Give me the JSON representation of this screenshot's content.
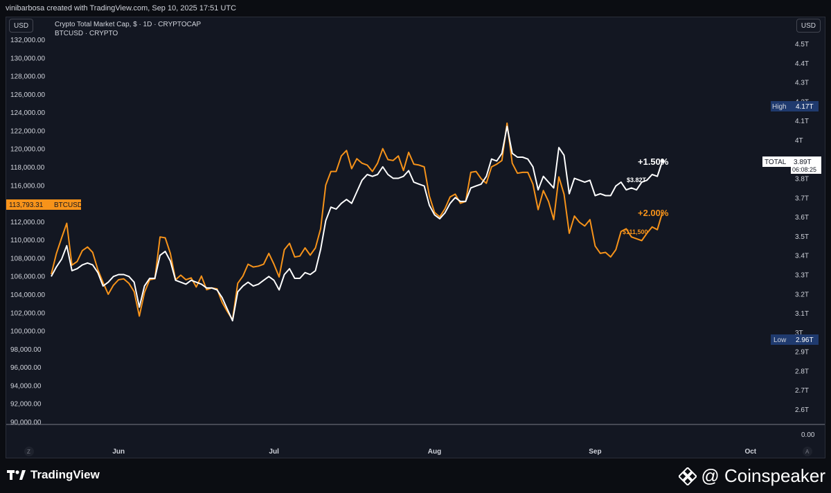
{
  "header": {
    "credit": "vinibarbosa created with TradingView.com, Sep 10, 2025 17:51 UTC"
  },
  "toolbar": {
    "left_currency": "USD",
    "right_currency": "USD"
  },
  "legend": {
    "line1": "Crypto Total Market Cap, $ · 1D · CRYPTOCAP",
    "line2": "BTCUSD · CRYPTO"
  },
  "labels": {
    "btc_price": "113,793.31",
    "btc_tag": "BTCUSD",
    "total_tag": "TOTAL",
    "total_value": "3.89T",
    "total_countdown": "06:08:25",
    "high_label": "High",
    "high_value": "4.17T",
    "low_label": "Low",
    "low_value": "2.96T",
    "total_pct": "+1.50%",
    "total_annot": "$3.82T",
    "btc_pct": "+2.00%",
    "btc_annot": "$111,500",
    "zero_label": "0.00",
    "z_button": "Z",
    "a_button": "A"
  },
  "footer": {
    "left_brand": "TradingView",
    "right_brand": "@ Coinspeaker"
  },
  "colors": {
    "background": "#131722",
    "btc_line": "#f7931a",
    "total_line": "#ffffff",
    "high_low_tag": "#1f3a6e"
  },
  "chart_data": {
    "type": "line",
    "x_start": "2025-05-19",
    "x_ticks": [
      "Jun",
      "Jul",
      "Aug",
      "Sep",
      "Oct"
    ],
    "left_axis": {
      "label": "BTCUSD",
      "ylim": [
        90000,
        132000
      ],
      "ticks": [
        "132,000.00",
        "130,000.00",
        "128,000.00",
        "126,000.00",
        "124,000.00",
        "122,000.00",
        "120,000.00",
        "118,000.00",
        "116,000.00",
        "114,000.00",
        "112,000.00",
        "110,000.00",
        "108,000.00",
        "106,000.00",
        "104,000.00",
        "102,000.00",
        "100,000.00",
        "98,000.00",
        "96,000.00",
        "94,000.00",
        "92,000.00",
        "90,000.00"
      ]
    },
    "right_axis": {
      "label": "TOTAL",
      "ticks": [
        "4.5T",
        "4.4T",
        "4.3T",
        "4.2T",
        "4.1T",
        "4T",
        "3.9T",
        "3.8T",
        "3.7T",
        "3.6T",
        "3.5T",
        "3.4T",
        "3.3T",
        "3.2T",
        "3.1T",
        "3T",
        "2.9T",
        "2.8T",
        "2.7T",
        "2.6T"
      ]
    },
    "series": [
      {
        "name": "BTCUSD",
        "color": "#f7931a",
        "axis": "left",
        "values": [
          106200,
          108500,
          110200,
          111800,
          107200,
          107600,
          108800,
          109200,
          108600,
          106700,
          105300,
          104000,
          105000,
          105600,
          105700,
          105200,
          104300,
          101600,
          104200,
          105600,
          105700,
          110300,
          110200,
          108500,
          105600,
          106100,
          105600,
          105800,
          104800,
          106000,
          104500,
          104700,
          104600,
          103100,
          102100,
          101200,
          105200,
          106000,
          107300,
          107000,
          107100,
          107300,
          108500,
          107300,
          105900,
          108900,
          109600,
          108100,
          108200,
          109100,
          108300,
          109100,
          111200,
          116000,
          117500,
          117500,
          119200,
          119800,
          117800,
          118900,
          118400,
          118200,
          117500,
          118400,
          120000,
          118800,
          118700,
          119200,
          117600,
          119600,
          118300,
          118200,
          118000,
          114800,
          113000,
          112500,
          113400,
          114700,
          115000,
          114000,
          114200,
          117400,
          117500,
          116700,
          116200,
          118000,
          118300,
          118700,
          122800,
          118400,
          117300,
          117400,
          117400,
          116100,
          113300,
          115400,
          114200,
          112200,
          116900,
          115000,
          110700,
          112600,
          111900,
          111500,
          112200,
          109300,
          108500,
          108600,
          108100,
          108900,
          110900,
          111200,
          110300,
          110100,
          109900,
          110700,
          111400,
          111100,
          113000
        ]
      },
      {
        "name": "TOTAL",
        "color": "#ffffff",
        "axis": "right",
        "values": [
          3.29,
          3.34,
          3.38,
          3.45,
          3.32,
          3.33,
          3.35,
          3.36,
          3.35,
          3.31,
          3.24,
          3.26,
          3.29,
          3.3,
          3.3,
          3.29,
          3.26,
          3.13,
          3.24,
          3.28,
          3.28,
          3.4,
          3.42,
          3.37,
          3.27,
          3.26,
          3.25,
          3.27,
          3.26,
          3.25,
          3.23,
          3.23,
          3.22,
          3.18,
          3.12,
          3.06,
          3.21,
          3.24,
          3.26,
          3.24,
          3.25,
          3.27,
          3.29,
          3.27,
          3.22,
          3.3,
          3.33,
          3.28,
          3.28,
          3.31,
          3.3,
          3.32,
          3.43,
          3.58,
          3.65,
          3.64,
          3.67,
          3.69,
          3.67,
          3.73,
          3.79,
          3.82,
          3.81,
          3.82,
          3.86,
          3.82,
          3.8,
          3.8,
          3.81,
          3.84,
          3.78,
          3.77,
          3.76,
          3.66,
          3.61,
          3.59,
          3.62,
          3.67,
          3.7,
          3.68,
          3.68,
          3.75,
          3.76,
          3.77,
          3.81,
          3.9,
          3.89,
          3.93,
          4.07,
          3.93,
          3.91,
          3.91,
          3.9,
          3.86,
          3.74,
          3.81,
          3.78,
          3.75,
          3.96,
          3.92,
          3.72,
          3.8,
          3.79,
          3.78,
          3.79,
          3.71,
          3.72,
          3.71,
          3.71,
          3.76,
          3.78,
          3.74,
          3.75,
          3.74,
          3.78,
          3.79,
          3.82,
          3.81,
          3.89
        ]
      }
    ]
  }
}
